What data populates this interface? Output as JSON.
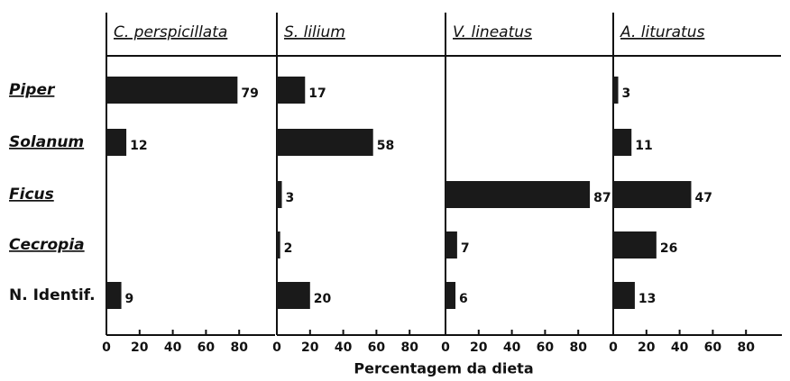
{
  "chart_data": {
    "type": "bar",
    "orientation": "horizontal",
    "categories": [
      "Piper",
      "Solanum",
      "Ficus",
      "Cecropia",
      "N. Identif."
    ],
    "series": [
      {
        "name": "C. perspicillata",
        "color": "#1a1a1a",
        "values": [
          79,
          12,
          null,
          null,
          9
        ]
      },
      {
        "name": "S. lilium",
        "color": "#1a1a1a",
        "values": [
          17,
          58,
          3,
          2,
          20
        ]
      },
      {
        "name": "V. lineatus",
        "color": "#1a1a1a",
        "values": [
          null,
          null,
          87,
          7,
          6
        ]
      },
      {
        "name": "A. lituratus",
        "color": "#1a1a1a",
        "values": [
          3,
          11,
          47,
          26,
          13
        ]
      }
    ],
    "xlabel": "Percentagem da dieta",
    "xlim": [
      0,
      100
    ],
    "xticks": [
      0,
      20,
      40,
      60,
      80
    ]
  }
}
